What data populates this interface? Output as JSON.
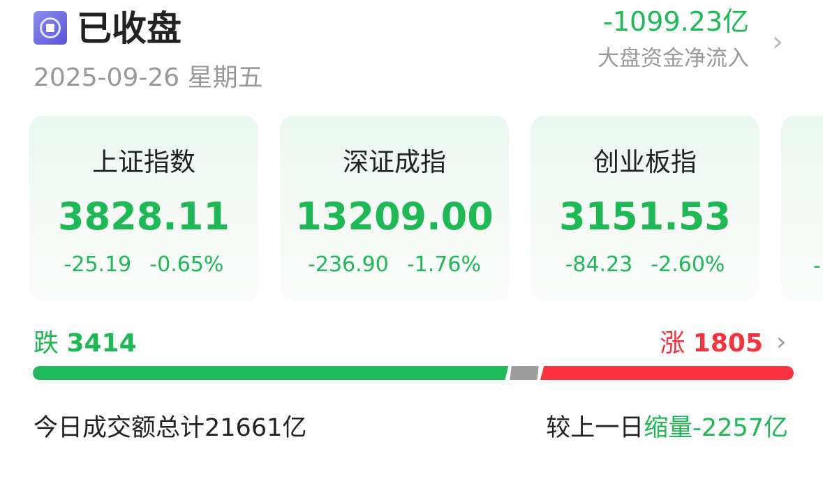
{
  "header": {
    "status": "已收盘",
    "date": "2025-09-26",
    "weekday": "星期五",
    "status_icon": "stop-circle-icon"
  },
  "net_flow": {
    "value": "-1099.23亿",
    "label": "大盘资金净流入"
  },
  "indices": [
    {
      "name": "上证指数",
      "price": "3828.11",
      "change": "-25.19",
      "change_pct": "-0.65%"
    },
    {
      "name": "深证成指",
      "price": "13209.00",
      "change": "-236.90",
      "change_pct": "-1.76%"
    },
    {
      "name": "创业板指",
      "price": "3151.53",
      "change": "-84.23",
      "change_pct": "-2.60%"
    }
  ],
  "breadth": {
    "down_label": "跌",
    "down_count": "3414",
    "up_label": "涨",
    "up_count": "1805",
    "down_share": 0.625,
    "flat_share": 0.04,
    "up_share": 0.335
  },
  "volume": {
    "total_prefix": "今日成交额总计",
    "total": "21661亿",
    "compare_prefix": "较上一日",
    "compare_word": "缩量",
    "compare_value": "-2257亿"
  },
  "colors": {
    "down": "#1db954",
    "up": "#f5333f",
    "flat": "#9d9d9d"
  }
}
